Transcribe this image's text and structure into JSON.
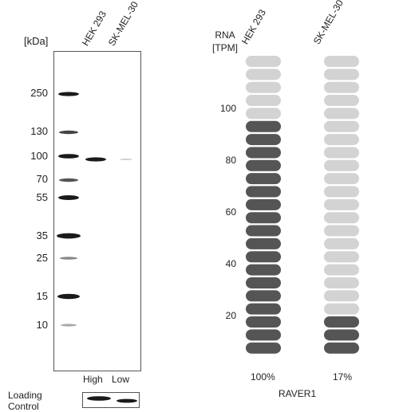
{
  "western_blot": {
    "unit_label": "[kDa]",
    "lanes": [
      "HEK 293",
      "SK-MEL-30"
    ],
    "markers": [
      "250",
      "130",
      "100",
      "70",
      "55",
      "35",
      "25",
      "15",
      "10"
    ],
    "levels": [
      "High",
      "Low"
    ],
    "loading_control": [
      "Loading",
      "Control"
    ]
  },
  "rna": {
    "header": [
      "RNA",
      "[TPM]"
    ],
    "samples": [
      {
        "name": "HEK 293",
        "percent": 100,
        "percent_label": "100%"
      },
      {
        "name": "SK-MEL-30",
        "percent": 17,
        "percent_label": "17%"
      }
    ],
    "ticks": [
      "100",
      "80",
      "60",
      "40",
      "20"
    ],
    "gene": "RAVER1",
    "colors": {
      "filled": "#555555",
      "empty": "#d3d3d3"
    }
  }
}
